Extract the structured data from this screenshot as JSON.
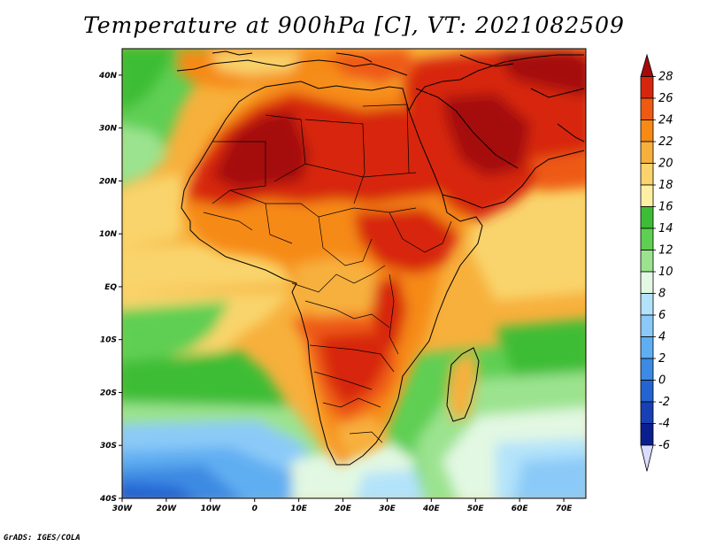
{
  "title": "Temperature at 900hPa [C], VT: 2021082509",
  "credit": "GrADS: IGES/COLA",
  "map": {
    "variable": "Temperature at 900hPa",
    "units": "C",
    "valid_time": "2021082509",
    "extent": {
      "lon": [
        -30,
        75
      ],
      "lat": [
        -40,
        45
      ]
    },
    "x_ticks": [
      "30W",
      "20W",
      "10W",
      "0",
      "10E",
      "20E",
      "30E",
      "40E",
      "50E",
      "60E",
      "70E"
    ],
    "y_ticks": [
      "40N",
      "30N",
      "20N",
      "10N",
      "EQ",
      "10S",
      "20S",
      "30S",
      "40S"
    ]
  },
  "colorbar": {
    "labels": [
      "28",
      "26",
      "24",
      "22",
      "20",
      "18",
      "16",
      "14",
      "12",
      "10",
      "8",
      "6",
      "4",
      "2",
      "0",
      "-2",
      "-4",
      "-6"
    ],
    "colors": [
      "#a50a0a",
      "#d7260e",
      "#ee5a12",
      "#f68a14",
      "#f7b03c",
      "#f9d46c",
      "#fdf0a4",
      "#3cbd35",
      "#5ecf52",
      "#9be38f",
      "#e2f8e2",
      "#b3e3fa",
      "#8bcaf8",
      "#60aef2",
      "#3c8ae3",
      "#2364d2",
      "#1740b4",
      "#0a1f8f",
      "#0c0a64"
    ]
  }
}
